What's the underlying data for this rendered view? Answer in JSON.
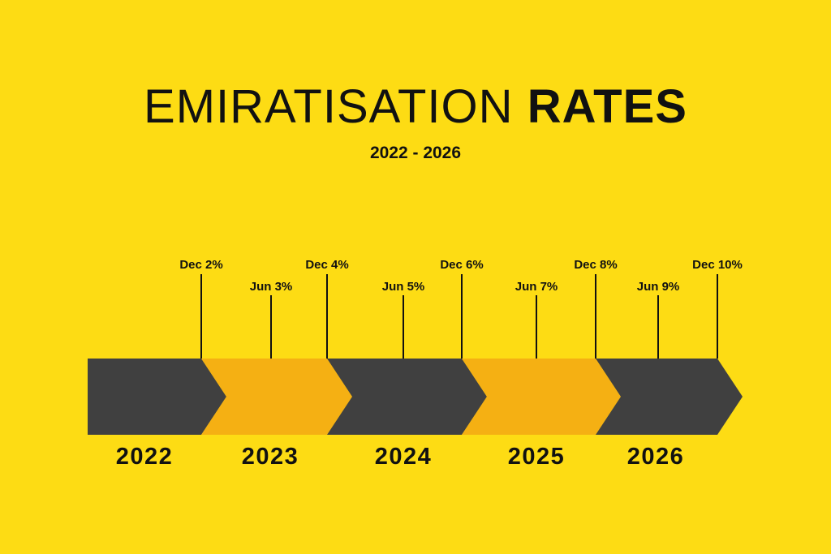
{
  "title": {
    "light": "EMIRATISATION",
    "bold": "RATES"
  },
  "subtitle": "2022 - 2026",
  "colors": {
    "background": "#FDDC14",
    "dark": "#404040",
    "orange": "#F5B013",
    "ink": "#111111"
  },
  "segments": [
    {
      "year": "2022",
      "color": "dark"
    },
    {
      "year": "2023",
      "color": "orange"
    },
    {
      "year": "2024",
      "color": "dark"
    },
    {
      "year": "2025",
      "color": "orange"
    },
    {
      "year": "2026",
      "color": "dark"
    }
  ],
  "markers": [
    {
      "label": "Dec 2%",
      "kind": "dec"
    },
    {
      "label": "Jun 3%",
      "kind": "jun"
    },
    {
      "label": "Dec 4%",
      "kind": "dec"
    },
    {
      "label": "Jun 5%",
      "kind": "jun"
    },
    {
      "label": "Dec 6%",
      "kind": "dec"
    },
    {
      "label": "Jun 7%",
      "kind": "jun"
    },
    {
      "label": "Dec 8%",
      "kind": "dec"
    },
    {
      "label": "Jun 9%",
      "kind": "jun"
    },
    {
      "label": "Dec 10%",
      "kind": "dec"
    }
  ]
}
